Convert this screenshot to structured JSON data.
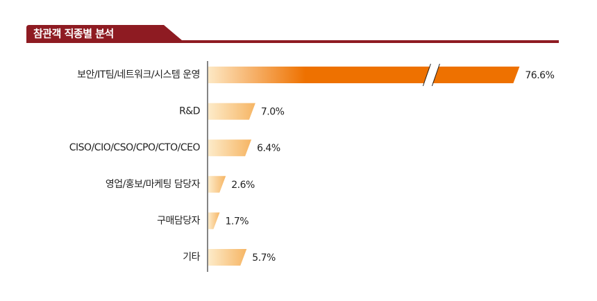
{
  "chart_data": {
    "type": "bar",
    "orientation": "horizontal",
    "title": "참관객 직종별 분석",
    "categories": [
      "보안/IT팀/네트워크/시스템 운영",
      "R&D",
      "CISO/CIO/CSO/CPO/CTO/CEO",
      "영업/홍보/마케팅 담당자",
      "구매담당자",
      "기타"
    ],
    "values": [
      76.6,
      7.0,
      6.4,
      2.6,
      1.7,
      5.7
    ],
    "value_labels": [
      "76.6%",
      "7.0%",
      "6.4%",
      "2.6%",
      "1.7%",
      "5.7%"
    ]
  }
}
